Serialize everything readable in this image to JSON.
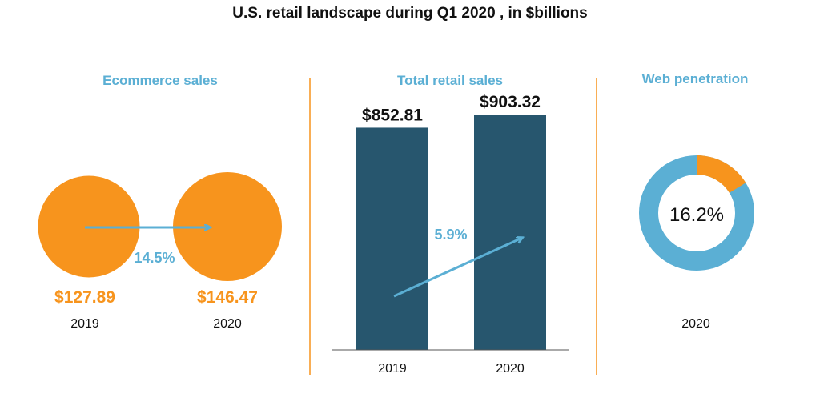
{
  "title": "U.S. retail landscape during Q1 2020 , in $billions",
  "colors": {
    "orange": "#F7941D",
    "blue": "#5BAFD4",
    "navy": "#27566E",
    "divider": "#F7941D",
    "text": "#111111"
  },
  "chart_data": [
    {
      "type": "bubble",
      "title": "Ecommerce sales",
      "categories": [
        "2019",
        "2020"
      ],
      "values": [
        127.89,
        146.47
      ],
      "value_labels": [
        "$127.89",
        "$146.47"
      ],
      "growth_label": "14.5%"
    },
    {
      "type": "bar",
      "title": "Total retail sales",
      "categories": [
        "2019",
        "2020"
      ],
      "values": [
        852.81,
        903.32
      ],
      "value_labels": [
        "$852.81",
        "$903.32"
      ],
      "growth_label": "5.9%",
      "ylim": [
        0,
        903.32
      ]
    },
    {
      "type": "pie",
      "title": "Web penetration",
      "categories": [
        "2020"
      ],
      "values": [
        16.2
      ],
      "center_label": "16.2%"
    }
  ]
}
